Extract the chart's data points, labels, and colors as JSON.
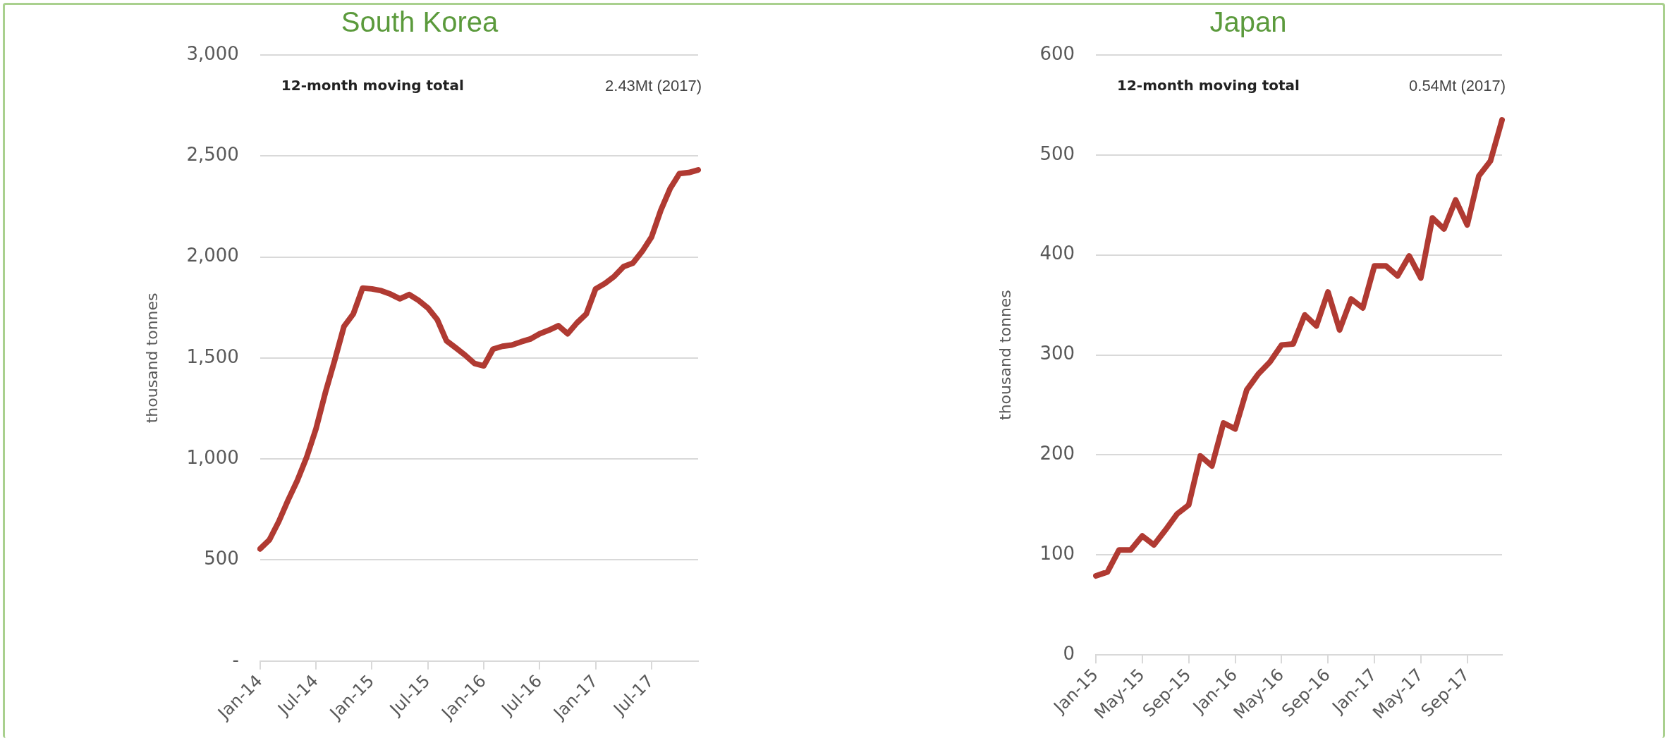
{
  "chart_data": [
    {
      "type": "line",
      "title": "South Korea",
      "ylabel": "thousand tonnes",
      "annotations": [
        "12-month moving total",
        "2.43Mt (2017)"
      ],
      "categories": [
        "Jan-14",
        null,
        null,
        null,
        null,
        null,
        "Jul-14",
        null,
        null,
        null,
        null,
        null,
        "Jan-15",
        null,
        null,
        null,
        null,
        null,
        "Jul-15",
        null,
        null,
        null,
        null,
        null,
        "Jan-16",
        null,
        null,
        null,
        null,
        null,
        "Jul-16",
        null,
        null,
        null,
        null,
        null,
        "Jan-17",
        null,
        null,
        null,
        null,
        null,
        "Jul-17",
        null,
        null,
        null,
        null,
        null
      ],
      "series": [
        {
          "color": "#b03a32",
          "values": [
            555,
            600,
            690,
            796,
            894,
            1009,
            1150,
            1328,
            1488,
            1656,
            1718,
            1846,
            1842,
            1833,
            1816,
            1793,
            1814,
            1785,
            1748,
            1691,
            1585,
            1550,
            1514,
            1473,
            1461,
            1544,
            1558,
            1564,
            1580,
            1594,
            1620,
            1638,
            1660,
            1620,
            1674,
            1718,
            1842,
            1869,
            1904,
            1952,
            1970,
            2028,
            2099,
            2232,
            2339,
            2413,
            2418,
            2431
          ]
        }
      ],
      "ylim": [
        0,
        3000
      ],
      "yticks": [
        {
          "value": 0,
          "label": "-"
        },
        500,
        {
          "value": 1000,
          "label": "1,000"
        },
        {
          "value": 1500,
          "label": "1,500"
        },
        {
          "value": 2000,
          "label": "2,000"
        },
        {
          "value": 2500,
          "label": "2,500"
        },
        {
          "value": 3000,
          "label": "3,000"
        }
      ],
      "grid": "y",
      "marker": "none"
    },
    {
      "type": "line",
      "title": "Japan",
      "ylabel": "thousand tonnes",
      "annotations": [
        "12-month moving total",
        "0.54Mt (2017)"
      ],
      "categories": [
        "Jan-15",
        null,
        null,
        null,
        "May-15",
        null,
        null,
        null,
        "Sep-15",
        null,
        null,
        null,
        "Jan-16",
        null,
        null,
        null,
        "May-16",
        null,
        null,
        null,
        "Sep-16",
        null,
        null,
        null,
        "Jan-17",
        null,
        null,
        null,
        "May-17",
        null,
        null,
        null,
        "Sep-17",
        null,
        null,
        null
      ],
      "series": [
        {
          "color": "#b03a32",
          "values": [
            79,
            83,
            105,
            105,
            119,
            110,
            125,
            141,
            150,
            199,
            189,
            232,
            226,
            265,
            281,
            293,
            310,
            311,
            340,
            329,
            363,
            325,
            356,
            347,
            389,
            389,
            379,
            399,
            377,
            437,
            426,
            455,
            430,
            479,
            494,
            535
          ]
        }
      ],
      "ylim": [
        0,
        600
      ],
      "yticks": [
        0,
        100,
        200,
        300,
        400,
        500,
        600
      ],
      "grid": "y",
      "marker": "none"
    }
  ]
}
